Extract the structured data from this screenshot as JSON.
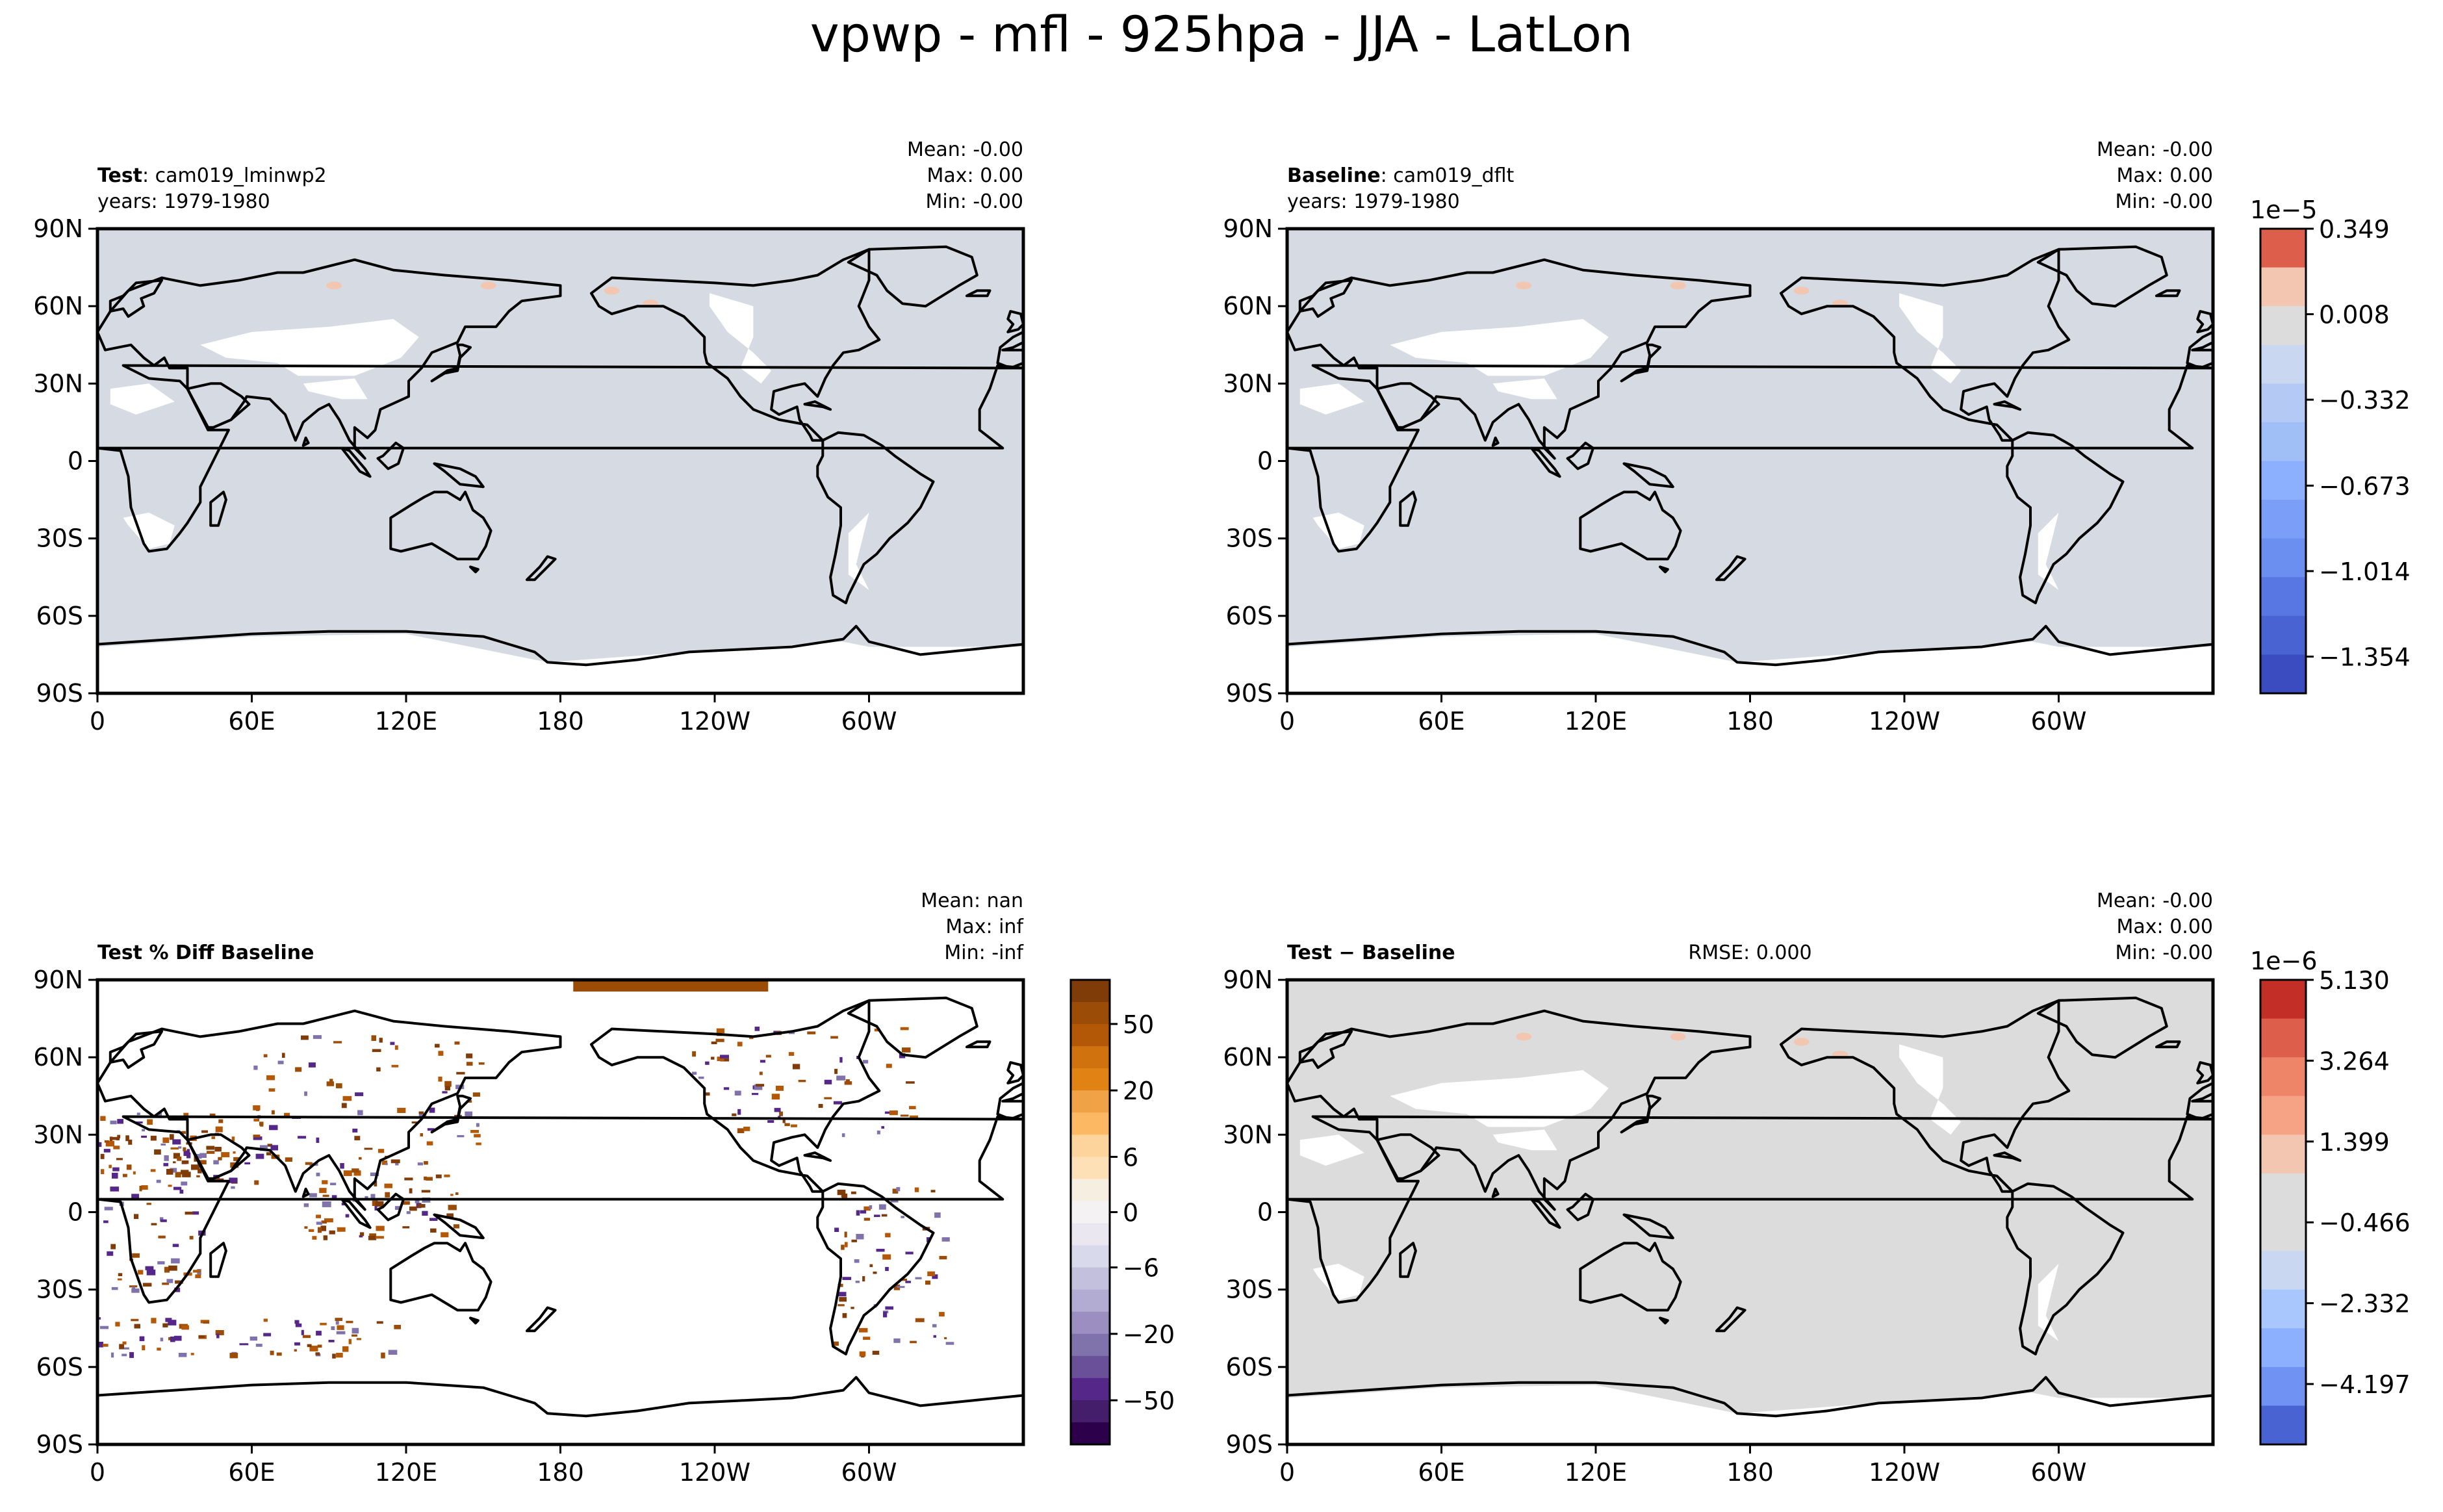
{
  "figure": {
    "title": "vpwp - mfl - 925hpa - JJA - LatLon"
  },
  "panels": [
    {
      "id": "test",
      "label_bold": "Test",
      "label_rest": ": cam019_lminwp2",
      "years": "years: 1979-1980",
      "stats": [
        "Mean: -0.00",
        "Max:  0.00",
        "Min: -0.00"
      ],
      "rmse": "",
      "fill": "#d6dbe3",
      "land_fill": "#ffffff"
    },
    {
      "id": "baseline",
      "label_bold": "Baseline",
      "label_rest": ": cam019_dflt",
      "years": "years: 1979-1980",
      "stats": [
        "Mean: -0.00",
        "Max:  0.00",
        "Min: -0.00"
      ],
      "rmse": "",
      "fill": "#d6dbe3",
      "land_fill": "#ffffff"
    },
    {
      "id": "pctdiff",
      "label_bold": "Test % Diff Baseline",
      "label_rest": "",
      "years": "",
      "stats": [
        "Mean:   nan",
        "Max:   inf",
        "Min:  -inf"
      ],
      "rmse": "",
      "fill": "#ffffff",
      "land_fill": "#ffffff"
    },
    {
      "id": "diff",
      "label_bold": "Test − Baseline",
      "label_rest": "",
      "years": "",
      "stats": [
        "Mean: -0.00",
        "Max:  0.00",
        "Min: -0.00"
      ],
      "rmse": "RMSE: 0.000",
      "fill": "#dcdcdc",
      "land_fill": "#ffffff"
    }
  ],
  "axes": {
    "lat_ticks": [
      "90N",
      "60N",
      "30N",
      "0",
      "30S",
      "60S",
      "90S"
    ],
    "lon_ticks": [
      "0",
      "60E",
      "120E",
      "180",
      "120W",
      "60W"
    ]
  },
  "colorbars": [
    {
      "id": "cb-abs",
      "exponent": "1e−5",
      "tick_labels": [
        "0.349",
        "0.008",
        "−0.332",
        "−0.673",
        "−1.014",
        "−1.354"
      ],
      "colors": [
        "#dd5f4b",
        "#f2c6b0",
        "#dcdcdc",
        "#c9d7f0",
        "#b4c9f3",
        "#a1bff7",
        "#8db0fe",
        "#7b9ff9",
        "#6a8ff0",
        "#5977e3",
        "#4a63d3",
        "#3b4cc0"
      ]
    },
    {
      "id": "cb-pct",
      "exponent": "",
      "tick_labels": [
        "50",
        "20",
        "6",
        "0",
        "−6",
        "−20",
        "−50"
      ],
      "colors": [
        "#7f3b08",
        "#9b4c07",
        "#b35806",
        "#d0730e",
        "#e08214",
        "#f0a247",
        "#fdb863",
        "#fdd49c",
        "#fee0b6",
        "#f7eee2",
        "#f4f2f2",
        "#eae7f1",
        "#d8daeb",
        "#c2c0dc",
        "#b2abd2",
        "#9c8ec1",
        "#8073ac",
        "#6a4f99",
        "#542788",
        "#451e6b",
        "#2d004b"
      ]
    },
    {
      "id": "cb-diff",
      "exponent": "1e−6",
      "tick_labels": [
        "5.130",
        "3.264",
        "1.399",
        "−0.466",
        "−2.332",
        "−4.197"
      ],
      "colors": [
        "#c32f27",
        "#dd5f4b",
        "#ee8468",
        "#f6a385",
        "#f2c6b0",
        "#dcdcdc",
        "#dcdcdc",
        "#c9d7f0",
        "#aac7fd",
        "#8db0fe",
        "#6f92f3",
        "#4a63d3"
      ]
    }
  ]
}
